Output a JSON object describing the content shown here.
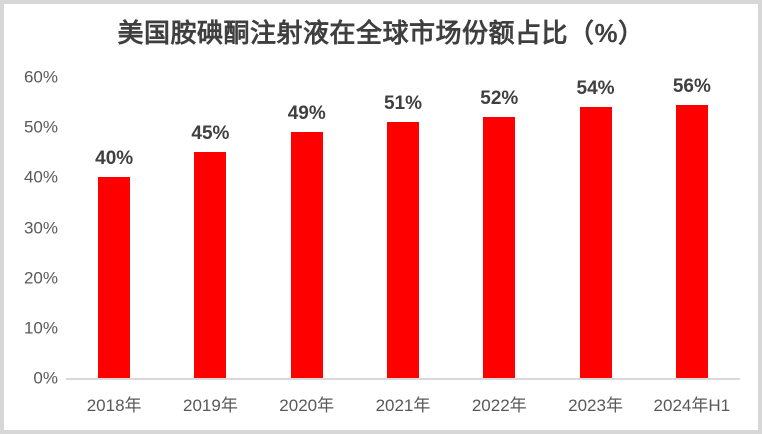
{
  "chart_data": {
    "type": "bar",
    "title": "美国胺碘酮注射液在全球市场份额占比（%）",
    "categories": [
      "2018年",
      "2019年",
      "2020年",
      "2021年",
      "2022年",
      "2023年",
      "2024年H1"
    ],
    "values": [
      40,
      45,
      49,
      51,
      52,
      54,
      56
    ],
    "value_suffix": "%",
    "xlabel": "",
    "ylabel": "",
    "ylim": [
      0,
      60
    ],
    "ytick_step": 10,
    "ytick_suffix": "%",
    "grid": false,
    "legend": "none",
    "colors": {
      "bar": "#ff0000",
      "value_label": "#404040",
      "axis_text": "#595959",
      "title": "#3f3f3f",
      "baseline": "#d9d9d9",
      "frame_border": "#d7d7d7"
    }
  }
}
